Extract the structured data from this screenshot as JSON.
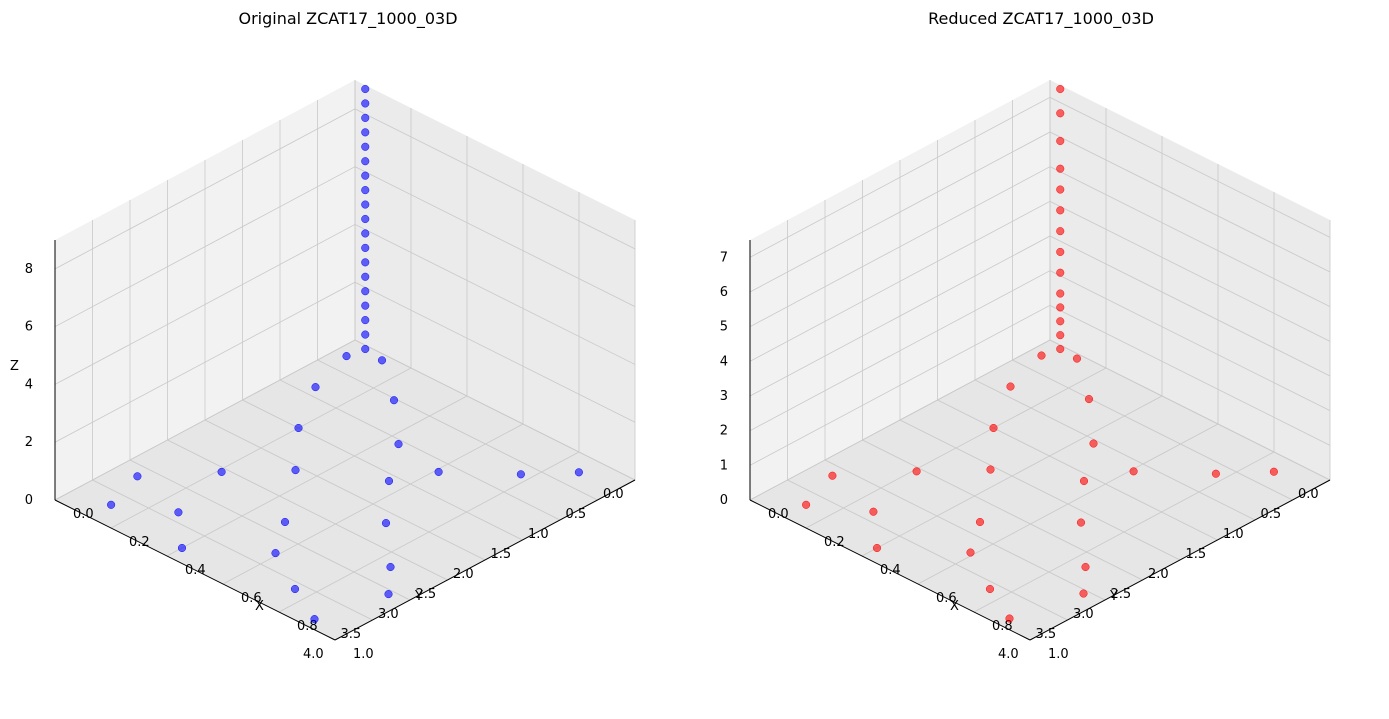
{
  "chart_data": [
    {
      "type": "scatter",
      "title": "Original ZCAT17_1000_03D",
      "xlabel": "X",
      "ylabel": "Y",
      "zlabel": "Z",
      "xlim": [
        0.0,
        1.0
      ],
      "ylim": [
        0.0,
        4.0
      ],
      "zlim": [
        0,
        9
      ],
      "xticks": [
        "0.0",
        "0.2",
        "0.4",
        "0.6",
        "0.8",
        "1.0"
      ],
      "yticks": [
        "0.0",
        "0.5",
        "1.0",
        "1.5",
        "2.0",
        "2.5",
        "3.0",
        "3.5",
        "4.0"
      ],
      "zticks": [
        "0",
        "2",
        "4",
        "6",
        "8"
      ],
      "point_color": "#0000ff",
      "grid": true,
      "series": [
        {
          "points": [
            [
              0.05,
              0.3,
              0.1
            ],
            [
              0.1,
              0.9,
              0.1
            ],
            [
              0.2,
              1.5,
              0.0
            ],
            [
              0.35,
              2.1,
              0.1
            ],
            [
              0.5,
              2.8,
              0.0
            ],
            [
              0.6,
              3.3,
              0.1
            ],
            [
              0.75,
              3.6,
              0.0
            ],
            [
              0.9,
              3.9,
              0.1
            ],
            [
              0.15,
              0.2,
              0.3
            ],
            [
              0.3,
              0.6,
              0.2
            ],
            [
              0.45,
              1.1,
              0.1
            ],
            [
              0.55,
              1.6,
              0.0
            ],
            [
              0.7,
              2.2,
              0.1
            ],
            [
              0.85,
              2.7,
              0.0
            ],
            [
              0.95,
              3.1,
              0.1
            ],
            [
              0.08,
              3.2,
              0.1
            ],
            [
              0.12,
              3.7,
              0.0
            ],
            [
              0.22,
              2.6,
              0.1
            ],
            [
              0.28,
              3.4,
              0.1
            ],
            [
              0.4,
              3.8,
              0.0
            ],
            [
              0.62,
              1.2,
              0.1
            ],
            [
              0.78,
              0.7,
              0.1
            ],
            [
              0.88,
              0.3,
              0.1
            ],
            [
              0.05,
              0.05,
              0.0
            ],
            [
              0.05,
              0.05,
              0.5
            ],
            [
              0.05,
              0.05,
              1.0
            ],
            [
              0.05,
              0.05,
              1.5
            ],
            [
              0.05,
              0.05,
              2.0
            ],
            [
              0.05,
              0.05,
              2.5
            ],
            [
              0.05,
              0.05,
              3.0
            ],
            [
              0.05,
              0.05,
              3.5
            ],
            [
              0.05,
              0.05,
              4.0
            ],
            [
              0.05,
              0.05,
              4.5
            ],
            [
              0.05,
              0.05,
              5.0
            ],
            [
              0.05,
              0.05,
              5.5
            ],
            [
              0.05,
              0.05,
              6.0
            ],
            [
              0.05,
              0.05,
              6.5
            ],
            [
              0.05,
              0.05,
              7.0
            ],
            [
              0.05,
              0.05,
              7.5
            ],
            [
              0.05,
              0.05,
              8.0
            ],
            [
              0.05,
              0.05,
              8.5
            ],
            [
              0.05,
              0.05,
              9.0
            ]
          ]
        }
      ]
    },
    {
      "type": "scatter",
      "title": "Reduced ZCAT17_1000_03D",
      "xlabel": "X",
      "ylabel": "Y",
      "zlabel": "",
      "xlim": [
        0.0,
        1.0
      ],
      "ylim": [
        0.0,
        4.0
      ],
      "zlim": [
        0,
        7.5
      ],
      "xticks": [
        "0.0",
        "0.2",
        "0.4",
        "0.6",
        "0.8",
        "1.0"
      ],
      "yticks": [
        "0.0",
        "0.5",
        "1.0",
        "1.5",
        "2.0",
        "2.5",
        "3.0",
        "3.5",
        "4.0"
      ],
      "zticks": [
        "0",
        "1",
        "2",
        "3",
        "4",
        "5",
        "6",
        "7"
      ],
      "point_color": "#ff0000",
      "grid": true,
      "series": [
        {
          "points": [
            [
              0.05,
              0.3,
              0.1
            ],
            [
              0.1,
              0.9,
              0.1
            ],
            [
              0.2,
              1.5,
              0.0
            ],
            [
              0.35,
              2.1,
              0.1
            ],
            [
              0.5,
              2.8,
              0.0
            ],
            [
              0.6,
              3.3,
              0.1
            ],
            [
              0.75,
              3.6,
              0.0
            ],
            [
              0.9,
              3.9,
              0.1
            ],
            [
              0.15,
              0.2,
              0.3
            ],
            [
              0.3,
              0.6,
              0.2
            ],
            [
              0.45,
              1.1,
              0.1
            ],
            [
              0.55,
              1.6,
              0.0
            ],
            [
              0.7,
              2.2,
              0.1
            ],
            [
              0.85,
              2.7,
              0.0
            ],
            [
              0.95,
              3.1,
              0.1
            ],
            [
              0.08,
              3.2,
              0.1
            ],
            [
              0.12,
              3.7,
              0.0
            ],
            [
              0.22,
              2.6,
              0.1
            ],
            [
              0.28,
              3.4,
              0.1
            ],
            [
              0.4,
              3.8,
              0.0
            ],
            [
              0.62,
              1.2,
              0.1
            ],
            [
              0.78,
              0.7,
              0.1
            ],
            [
              0.88,
              0.3,
              0.1
            ],
            [
              0.05,
              0.05,
              0.0
            ],
            [
              0.05,
              0.05,
              0.4
            ],
            [
              0.05,
              0.05,
              0.8
            ],
            [
              0.05,
              0.05,
              1.2
            ],
            [
              0.05,
              0.05,
              1.6
            ],
            [
              0.05,
              0.05,
              2.2
            ],
            [
              0.05,
              0.05,
              2.8
            ],
            [
              0.05,
              0.05,
              3.4
            ],
            [
              0.05,
              0.05,
              4.0
            ],
            [
              0.05,
              0.05,
              4.6
            ],
            [
              0.05,
              0.05,
              5.2
            ],
            [
              0.05,
              0.05,
              6.0
            ],
            [
              0.05,
              0.05,
              6.8
            ],
            [
              0.05,
              0.05,
              7.5
            ]
          ]
        }
      ]
    }
  ]
}
